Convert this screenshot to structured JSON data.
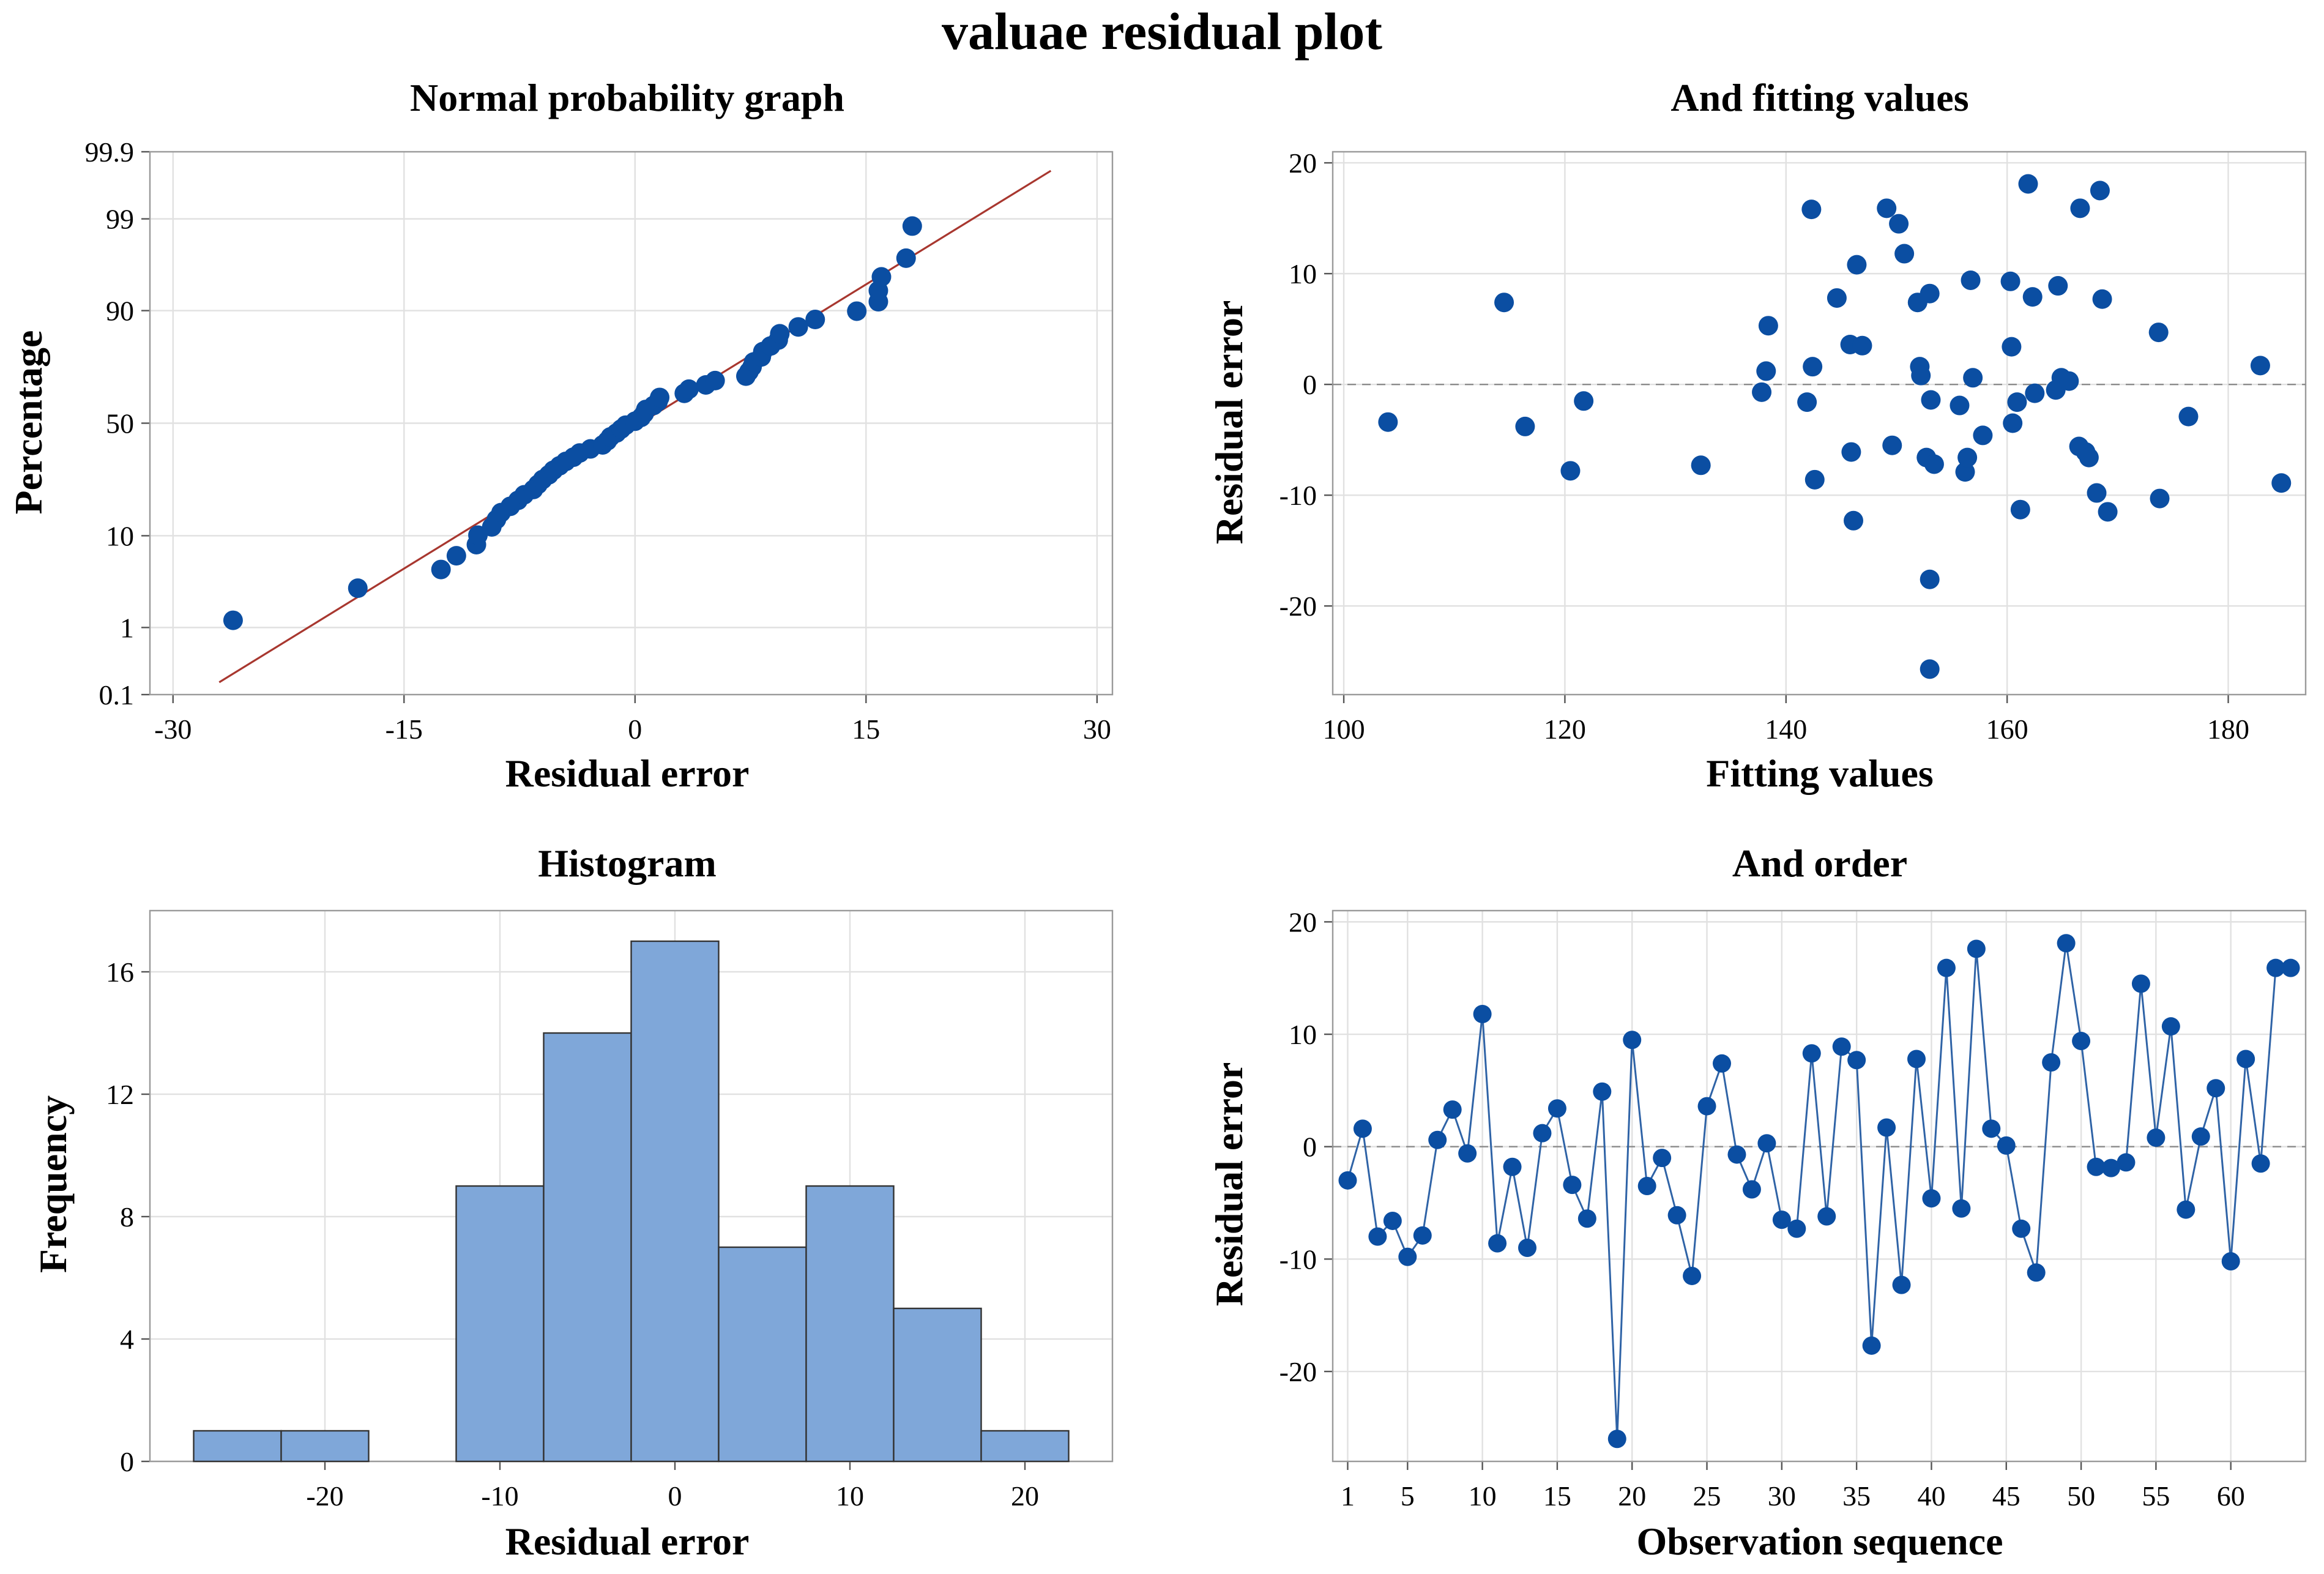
{
  "figure": {
    "title": "valuae residual plot",
    "colors": {
      "marker": "#0b4ea2",
      "fit_line": "#a8372f",
      "bar_fill": "#7fa7d9",
      "bar_edge": "#333333",
      "order_line": "#2f63a6"
    }
  },
  "chart_data": [
    {
      "id": "normal",
      "type": "scatter",
      "title": "Normal probability graph",
      "xlabel": "Residual error",
      "ylabel": "Percentage",
      "xlim": [
        -31.5,
        31
      ],
      "x_ticks": [
        -30,
        -15,
        0,
        15,
        30
      ],
      "y_ticks": [
        0.1,
        1,
        10,
        50,
        90,
        99,
        99.9
      ],
      "y_scale": "normal-probability",
      "fit_line": {
        "x": [
          -27,
          27
        ]
      },
      "residuals": [
        -26.1,
        -18,
        -12.6,
        -11.6,
        -10.3,
        -10.2,
        -9.3,
        -9,
        -8.7,
        -8.1,
        -7.6,
        -7.2,
        -6.6,
        -6.3,
        -6,
        -5.6,
        -5.3,
        -4.9,
        -4.5,
        -4,
        -3.6,
        -2.9,
        -2.1,
        -1.8,
        -1.6,
        -1.2,
        -0.9,
        -0.6,
        0,
        0.4,
        0.6,
        0.7,
        1.2,
        1.5,
        1.6,
        3.2,
        3.5,
        4.6,
        5.2,
        7.2,
        7.4,
        7.6,
        7.7,
        8.2,
        8.3,
        8.8,
        9.3,
        9.4,
        10.6,
        11.7,
        14.4,
        15.8,
        15.8,
        16,
        17.6,
        18
      ]
    },
    {
      "id": "fitted",
      "type": "scatter",
      "title": "And fitting values",
      "xlabel": "Fitting values",
      "ylabel": "Residual error",
      "xlim": [
        99,
        187
      ],
      "ylim": [
        -28,
        21
      ],
      "x_ticks": [
        100,
        120,
        140,
        160,
        180
      ],
      "y_ticks": [
        -20,
        -10,
        0,
        10,
        20
      ],
      "reference_line_y": 0,
      "points": [
        [
          104,
          -3.4
        ],
        [
          114.5,
          7.4
        ],
        [
          116.4,
          -3.8
        ],
        [
          120.5,
          -7.8
        ],
        [
          121.7,
          -1.5
        ],
        [
          132.3,
          -7.3
        ],
        [
          137.8,
          -0.7
        ],
        [
          138.2,
          1.2
        ],
        [
          138.4,
          5.3
        ],
        [
          141.9,
          -1.6
        ],
        [
          142.3,
          15.8
        ],
        [
          142.4,
          1.6
        ],
        [
          142.6,
          -8.6
        ],
        [
          144.6,
          7.8
        ],
        [
          145.8,
          3.6
        ],
        [
          145.9,
          -6.1
        ],
        [
          146.1,
          -12.3
        ],
        [
          146.4,
          10.8
        ],
        [
          146.9,
          3.5
        ],
        [
          149.1,
          15.9
        ],
        [
          149.6,
          -5.5
        ],
        [
          150.2,
          14.5
        ],
        [
          150.7,
          11.8
        ],
        [
          151.9,
          7.4
        ],
        [
          152.1,
          1.6
        ],
        [
          152.2,
          0.8
        ],
        [
          152.7,
          -6.6
        ],
        [
          153,
          8.2
        ],
        [
          153.1,
          -1.4
        ],
        [
          153,
          -17.6
        ],
        [
          153,
          -25.7
        ],
        [
          153.4,
          -7.2
        ],
        [
          155.7,
          -1.9
        ],
        [
          156.2,
          -7.9
        ],
        [
          156.4,
          -6.6
        ],
        [
          156.7,
          9.4
        ],
        [
          156.9,
          0.6
        ],
        [
          157.8,
          -4.6
        ],
        [
          160.3,
          9.3
        ],
        [
          160.4,
          3.4
        ],
        [
          160.5,
          -3.5
        ],
        [
          160.9,
          -1.6
        ],
        [
          161.2,
          -11.3
        ],
        [
          161.9,
          18.1
        ],
        [
          162.3,
          7.9
        ],
        [
          162.5,
          -0.8
        ],
        [
          164.4,
          -0.5
        ],
        [
          164.6,
          8.9
        ],
        [
          164.9,
          0.6
        ],
        [
          165.6,
          0.3
        ],
        [
          166.5,
          -5.6
        ],
        [
          166.6,
          15.9
        ],
        [
          167.1,
          -6.1
        ],
        [
          167.4,
          -6.6
        ],
        [
          168.1,
          -9.8
        ],
        [
          168.4,
          17.5
        ],
        [
          168.6,
          7.7
        ],
        [
          169.1,
          -11.5
        ],
        [
          173.7,
          4.7
        ],
        [
          173.8,
          -10.3
        ],
        [
          176.4,
          -2.9
        ],
        [
          182.9,
          1.7
        ],
        [
          184.8,
          -8.9
        ]
      ]
    },
    {
      "id": "histogram",
      "type": "bar",
      "title": "Histogram",
      "xlabel": "Residual error",
      "ylabel": "Frequency",
      "xlim": [
        -30,
        25
      ],
      "ylim": [
        0,
        18
      ],
      "x_ticks": [
        -20,
        -10,
        0,
        10,
        20
      ],
      "y_ticks": [
        0,
        4,
        8,
        12,
        16
      ],
      "bin_width": 5,
      "bin_left_edges": [
        -27.5,
        -22.5,
        -17.5,
        -12.5,
        -7.5,
        -2.5,
        2.5,
        7.5,
        12.5,
        17.5
      ],
      "values": [
        1,
        1,
        0,
        9,
        14,
        17,
        7,
        9,
        5,
        1
      ]
    },
    {
      "id": "order",
      "type": "line",
      "title": "And order",
      "xlabel": "Observation sequence",
      "ylabel": "Residual error",
      "xlim": [
        0,
        65
      ],
      "ylim": [
        -28,
        21
      ],
      "x_ticks": [
        1,
        5,
        10,
        15,
        20,
        25,
        30,
        35,
        40,
        45,
        50,
        55,
        60
      ],
      "y_ticks": [
        -20,
        -10,
        0,
        10,
        20
      ],
      "reference_line_y": 0,
      "values": [
        -3,
        1.6,
        -8,
        -6.6,
        -9.8,
        -7.9,
        0.6,
        3.3,
        -0.6,
        11.8,
        -8.6,
        -1.8,
        -9,
        1.2,
        3.4,
        -3.4,
        -6.4,
        4.9,
        -26,
        9.5,
        -3.5,
        -1,
        -6.1,
        -11.5,
        3.6,
        7.4,
        -0.7,
        -3.8,
        0.3,
        -6.5,
        -7.3,
        8.3,
        -6.2,
        8.9,
        7.7,
        -17.7,
        1.7,
        -12.3,
        7.8,
        -4.6,
        15.9,
        -5.5,
        17.6,
        1.6,
        0.1,
        -7.3,
        -11.2,
        7.5,
        18.1,
        9.4,
        -1.8,
        -1.9,
        -1.4,
        14.5,
        0.8,
        10.7,
        -5.6,
        0.9,
        5.2,
        -10.2,
        7.8,
        -1.5,
        15.9,
        15.9
      ]
    }
  ]
}
